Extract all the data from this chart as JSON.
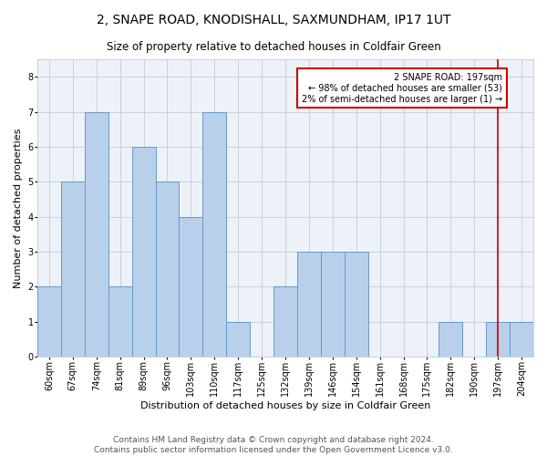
{
  "title": "2, SNAPE ROAD, KNODISHALL, SAXMUNDHAM, IP17 1UT",
  "subtitle": "Size of property relative to detached houses in Coldfair Green",
  "xlabel": "Distribution of detached houses by size in Coldfair Green",
  "ylabel": "Number of detached properties",
  "footer_line1": "Contains HM Land Registry data © Crown copyright and database right 2024.",
  "footer_line2": "Contains public sector information licensed under the Open Government Licence v3.0.",
  "bar_labels": [
    "60sqm",
    "67sqm",
    "74sqm",
    "81sqm",
    "89sqm",
    "96sqm",
    "103sqm",
    "110sqm",
    "117sqm",
    "125sqm",
    "132sqm",
    "139sqm",
    "146sqm",
    "154sqm",
    "161sqm",
    "168sqm",
    "175sqm",
    "182sqm",
    "190sqm",
    "197sqm",
    "204sqm"
  ],
  "bar_values": [
    2,
    5,
    7,
    2,
    6,
    5,
    4,
    7,
    1,
    0,
    2,
    3,
    3,
    3,
    0,
    0,
    0,
    1,
    0,
    1,
    1
  ],
  "bar_color": "#b8d0ea",
  "bar_edgecolor": "#6699cc",
  "highlight_index": 19,
  "highlight_line_color": "#cc0000",
  "annotation_text": "2 SNAPE ROAD: 197sqm\n← 98% of detached houses are smaller (53)\n2% of semi-detached houses are larger (1) →",
  "annotation_box_color": "#cc0000",
  "ylim": [
    0,
    8.5
  ],
  "yticks": [
    0,
    1,
    2,
    3,
    4,
    5,
    6,
    7,
    8
  ],
  "grid_color": "#c8d0d8",
  "bg_color": "#edf2f9",
  "title_fontsize": 10,
  "subtitle_fontsize": 8.5,
  "axis_label_fontsize": 8,
  "tick_fontsize": 7,
  "annotation_fontsize": 7,
  "footer_fontsize": 6.5,
  "ylabel_fontsize": 8
}
